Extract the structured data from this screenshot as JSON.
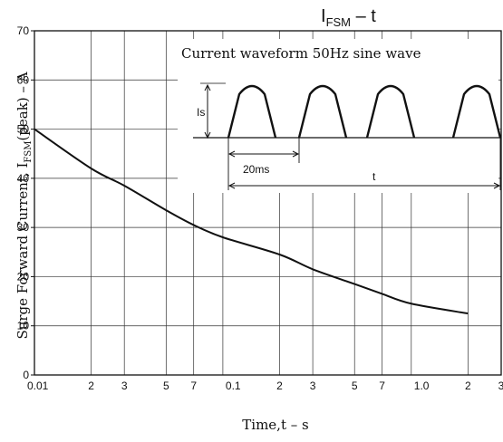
{
  "chart_data": {
    "type": "line",
    "title": {
      "main": "I",
      "sub": "FSM",
      "tail": " –  t"
    },
    "ylabel": {
      "pre": "Surge Forward Current, I",
      "sub": "FSM",
      "post": "(peak) – A"
    },
    "xlabel": "Time,t – s",
    "x_scale": "log",
    "xlim": [
      0.01,
      3
    ],
    "ylim": [
      0,
      70
    ],
    "x_ticks": [
      {
        "v": 0.01,
        "label": "0.01"
      },
      {
        "v": 0.02,
        "label": "2"
      },
      {
        "v": 0.03,
        "label": "3"
      },
      {
        "v": 0.05,
        "label": "5"
      },
      {
        "v": 0.07,
        "label": "7"
      },
      {
        "v": 0.1,
        "label": "0.1"
      },
      {
        "v": 0.2,
        "label": "2"
      },
      {
        "v": 0.3,
        "label": "3"
      },
      {
        "v": 0.5,
        "label": "5"
      },
      {
        "v": 0.7,
        "label": "7"
      },
      {
        "v": 1.0,
        "label": "1.0"
      },
      {
        "v": 2,
        "label": "2"
      },
      {
        "v": 3,
        "label": "3"
      }
    ],
    "y_ticks": [
      {
        "v": 0,
        "label": "0"
      },
      {
        "v": 10,
        "label": "10"
      },
      {
        "v": 20,
        "label": "20"
      },
      {
        "v": 30,
        "label": "30"
      },
      {
        "v": 40,
        "label": "40"
      },
      {
        "v": 50,
        "label": "50"
      },
      {
        "v": 60,
        "label": "60"
      },
      {
        "v": 70,
        "label": "70"
      }
    ],
    "grid": true,
    "series": [
      {
        "color": "#111111",
        "x": [
          0.01,
          0.02,
          0.03,
          0.05,
          0.07,
          0.1,
          0.2,
          0.3,
          0.5,
          0.7,
          1.0,
          2.0
        ],
        "y": [
          50,
          42,
          38.5,
          33.5,
          30.5,
          28,
          24.5,
          21.5,
          18.5,
          16.5,
          14.5,
          12.5
        ]
      }
    ],
    "annotation": {
      "text": "Current waveform 50Hz sine wave",
      "peak_label": "Is",
      "period_label": "20ms",
      "duration_label": "t"
    }
  }
}
